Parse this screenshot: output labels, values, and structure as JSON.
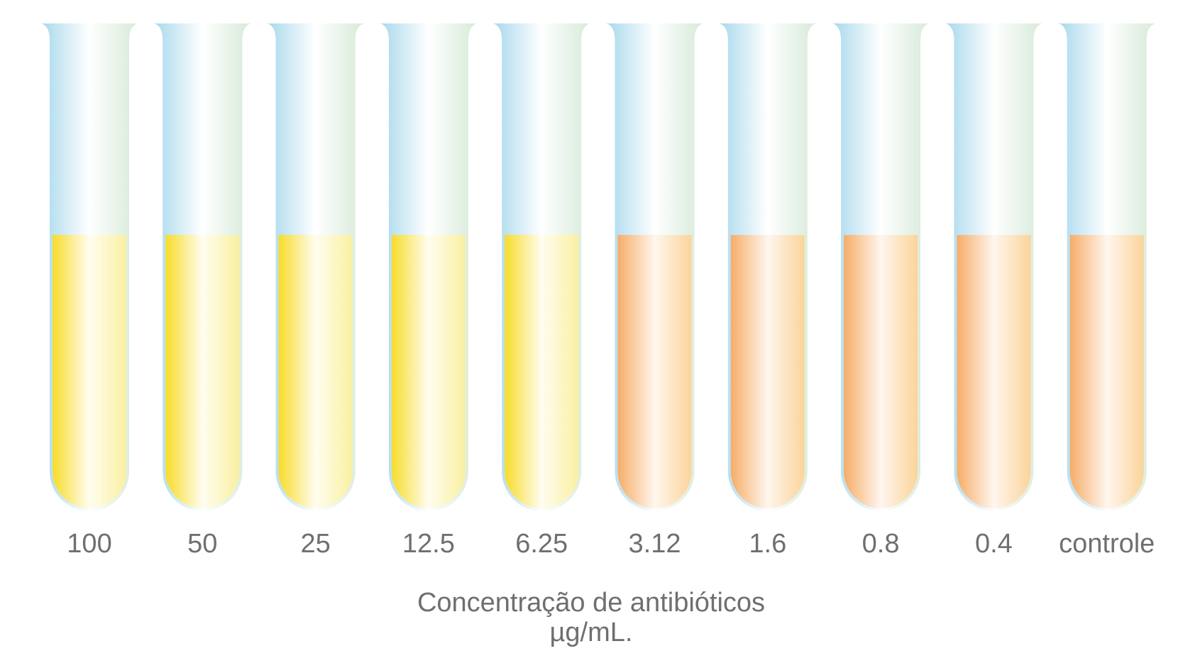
{
  "tubes": [
    {
      "label": "100",
      "liquid": "yellow"
    },
    {
      "label": "50",
      "liquid": "yellow"
    },
    {
      "label": "25",
      "liquid": "yellow"
    },
    {
      "label": "12.5",
      "liquid": "yellow"
    },
    {
      "label": "6.25",
      "liquid": "yellow"
    },
    {
      "label": "3.12",
      "liquid": "orange"
    },
    {
      "label": "1.6",
      "liquid": "orange"
    },
    {
      "label": "0.8",
      "liquid": "orange"
    },
    {
      "label": "0.4",
      "liquid": "orange"
    },
    {
      "label": "controle",
      "liquid": "orange"
    }
  ],
  "caption": {
    "line1": "Concentração de antibióticos",
    "line2": "µg/mL."
  },
  "colors": {
    "glass_left": "#a8d8ec",
    "glass_mid": "#ffffff",
    "glass_right": "#d6ead8",
    "yellow_dark": "#f8dc2a",
    "yellow_light": "#faf0a0",
    "orange_dark": "#f6ad68",
    "orange_light": "#fbd49a",
    "text": "#6f6f6f"
  }
}
